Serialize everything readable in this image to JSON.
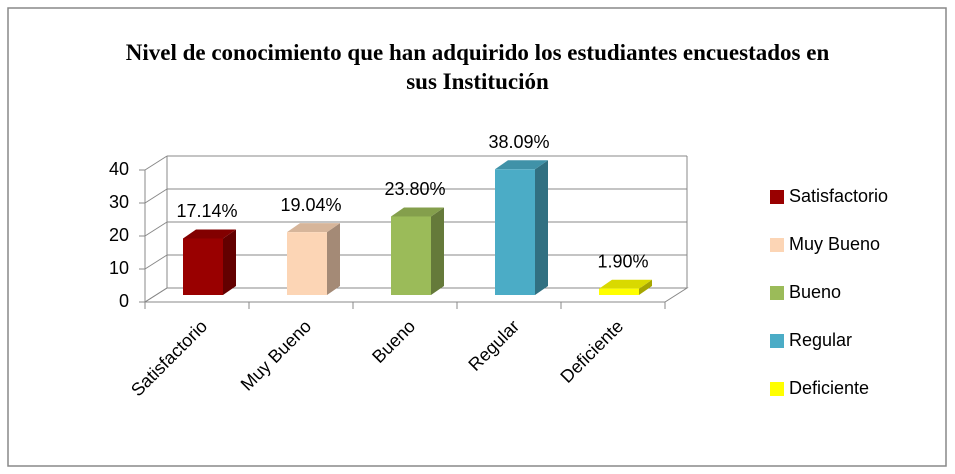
{
  "chart_data": {
    "type": "bar3d",
    "title": "Nivel de conocimiento que han adquirido los estudiantes encuestados en sus Institución",
    "categories": [
      "Satisfactorio",
      "Muy Bueno",
      "Bueno",
      "Regular",
      "Deficiente"
    ],
    "values": [
      17.14,
      19.04,
      23.8,
      38.09,
      1.9
    ],
    "value_labels": [
      "17.14%",
      "19.04%",
      "23.80%",
      "38.09%",
      "1.90%"
    ],
    "colors": [
      "#990000",
      "#fcd5b5",
      "#9bbb59",
      "#4bacc6",
      "#ffff00"
    ],
    "ylim": [
      0,
      40
    ],
    "yticks": [
      0,
      10,
      20,
      30,
      40
    ],
    "grid": true,
    "legend": "right"
  }
}
